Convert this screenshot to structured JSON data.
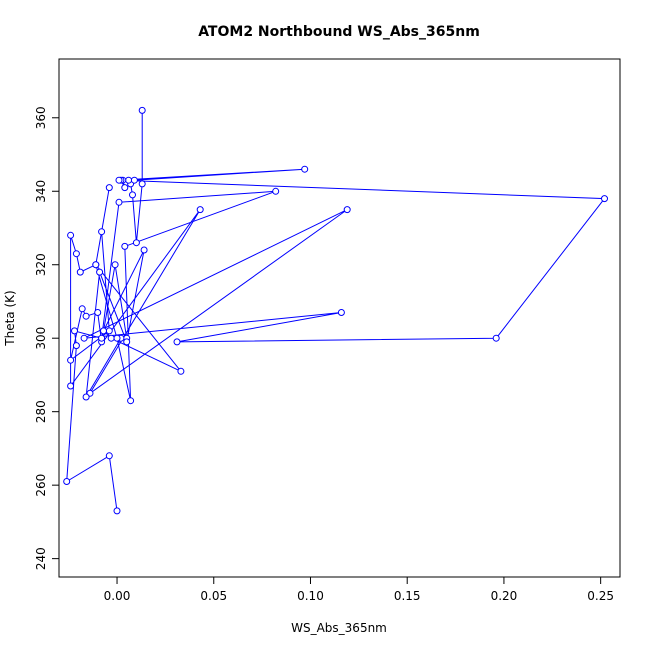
{
  "chart_data": {
    "type": "line",
    "title": "ATOM2 Northbound WS_Abs_365nm",
    "xlabel": "WS_Abs_365nm",
    "ylabel": "Theta (K)",
    "xlim": [
      -0.03,
      0.26
    ],
    "ylim": [
      235,
      376
    ],
    "xticks": [
      0.0,
      0.05,
      0.1,
      0.15,
      0.2,
      0.25
    ],
    "xtick_labels": [
      "0.00",
      "0.05",
      "0.10",
      "0.15",
      "0.20",
      "0.25"
    ],
    "yticks": [
      240,
      260,
      280,
      300,
      320,
      340,
      360
    ],
    "ytick_labels": [
      "240",
      "260",
      "280",
      "300",
      "320",
      "340",
      "360"
    ],
    "grid": false,
    "line_color": "#0000ff",
    "marker": "open-circle",
    "series": [
      {
        "x": [
          0.013,
          0.013,
          0.01,
          0.008,
          0.007,
          0.006,
          0.003,
          0.004,
          0.002,
          0.009,
          0.097,
          0.001,
          0.252,
          0.196,
          0.031,
          0.116,
          -0.017,
          0.119,
          -0.014,
          0.043,
          -0.024,
          -0.024,
          -0.021,
          -0.019,
          -0.011,
          -0.004,
          -0.008,
          -0.004,
          -0.024,
          -0.018,
          -0.016,
          -0.01,
          -0.008,
          -0.001,
          0.005,
          0.002,
          -0.016,
          -0.009,
          0.005,
          0.014,
          -0.007,
          -0.003,
          0.033,
          -0.011,
          0.0,
          0.007,
          0.004,
          0.082,
          0.001,
          -0.008,
          -0.022,
          -0.021,
          -0.026,
          -0.004,
          0.0
        ],
        "y": [
          362,
          342,
          326,
          339,
          342,
          343,
          343,
          341,
          343,
          343,
          346,
          343,
          338,
          300,
          299,
          307,
          300,
          335,
          285,
          335,
          287,
          328,
          323,
          318,
          320,
          341,
          329,
          302,
          294,
          308,
          306,
          307,
          299,
          320,
          300,
          300,
          284,
          318,
          299,
          324,
          302,
          300,
          291,
          320,
          300,
          283,
          325,
          340,
          337,
          300,
          302,
          298,
          261,
          268,
          253
        ]
      }
    ]
  }
}
